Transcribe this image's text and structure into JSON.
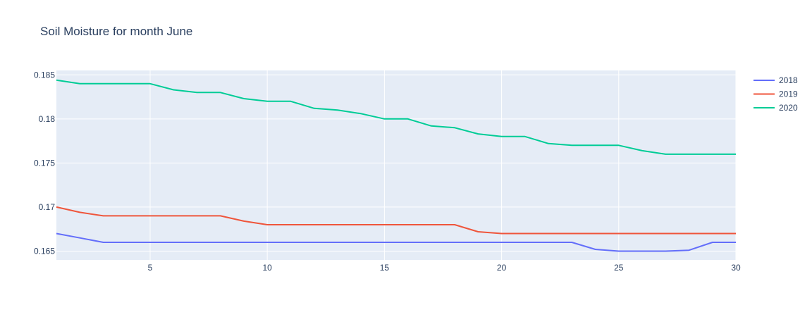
{
  "chart_data": {
    "type": "line",
    "title": "Soil Moisture for month June",
    "xlabel": "",
    "ylabel": "",
    "xlim": [
      1,
      30
    ],
    "ylim": [
      0.164,
      0.1855
    ],
    "x_ticks": [
      5,
      10,
      15,
      20,
      25,
      30
    ],
    "y_ticks": [
      0.165,
      0.17,
      0.175,
      0.18,
      0.185
    ],
    "y_tick_labels": [
      "0.165",
      "0.17",
      "0.175",
      "0.18",
      "0.185"
    ],
    "grid": true,
    "legend_position": "top-right",
    "x": [
      1,
      2,
      3,
      4,
      5,
      6,
      7,
      8,
      9,
      10,
      11,
      12,
      13,
      14,
      15,
      16,
      17,
      18,
      19,
      20,
      21,
      22,
      23,
      24,
      25,
      26,
      27,
      28,
      29,
      30
    ],
    "series": [
      {
        "name": "2018",
        "color": "#636efa",
        "values": [
          0.167,
          0.1665,
          0.166,
          0.166,
          0.166,
          0.166,
          0.166,
          0.166,
          0.166,
          0.166,
          0.166,
          0.166,
          0.166,
          0.166,
          0.166,
          0.166,
          0.166,
          0.166,
          0.166,
          0.166,
          0.166,
          0.166,
          0.166,
          0.1652,
          0.165,
          0.165,
          0.165,
          0.1651,
          0.166,
          0.166
        ]
      },
      {
        "name": "2019",
        "color": "#ef553b",
        "values": [
          0.17,
          0.1694,
          0.169,
          0.169,
          0.169,
          0.169,
          0.169,
          0.169,
          0.1684,
          0.168,
          0.168,
          0.168,
          0.168,
          0.168,
          0.168,
          0.168,
          0.168,
          0.168,
          0.1672,
          0.167,
          0.167,
          0.167,
          0.167,
          0.167,
          0.167,
          0.167,
          0.167,
          0.167,
          0.167,
          0.167
        ]
      },
      {
        "name": "2020",
        "color": "#00cc96",
        "values": [
          0.1844,
          0.184,
          0.184,
          0.184,
          0.184,
          0.1833,
          0.183,
          0.183,
          0.1823,
          0.182,
          0.182,
          0.1812,
          0.181,
          0.1806,
          0.18,
          0.18,
          0.1792,
          0.179,
          0.1783,
          0.178,
          0.178,
          0.1772,
          0.177,
          0.177,
          0.177,
          0.1764,
          0.176,
          0.176,
          0.176,
          0.176
        ]
      }
    ]
  }
}
